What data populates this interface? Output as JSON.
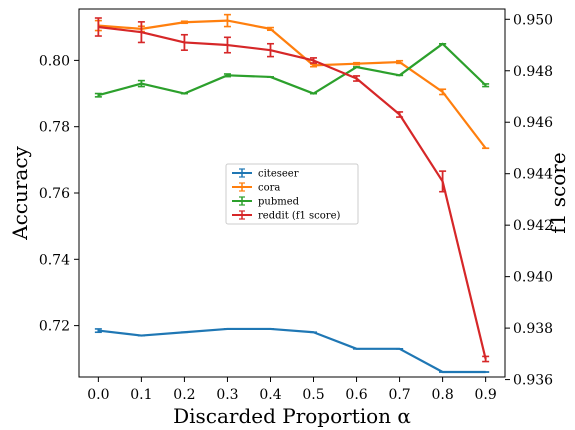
{
  "chart_data": {
    "type": "line",
    "xlabel": "Discarded Proportion α",
    "ylabel_left": "Accuracy",
    "ylabel_right": "f1 score",
    "x": [
      0.0,
      0.1,
      0.2,
      0.3,
      0.4,
      0.5,
      0.6,
      0.7,
      0.8,
      0.9
    ],
    "x_ticks": [
      "0.0",
      "0.1",
      "0.2",
      "0.3",
      "0.4",
      "0.5",
      "0.6",
      "0.7",
      "0.8",
      "0.9"
    ],
    "xlim": [
      -0.045,
      0.945
    ],
    "ylim_left": [
      0.7045,
      0.8155
    ],
    "yticks_left": [
      "0.72",
      "0.74",
      "0.76",
      "0.78",
      "0.80"
    ],
    "ylim_right": [
      0.9361,
      0.9504
    ],
    "yticks_right": [
      "0.936",
      "0.938",
      "0.940",
      "0.942",
      "0.944",
      "0.946",
      "0.948",
      "0.950"
    ],
    "legend_position": "center",
    "series": [
      {
        "name": "citeseer",
        "axis": "left",
        "color": "#1f77b4",
        "values": [
          0.7185,
          0.717,
          0.718,
          0.719,
          0.719,
          0.718,
          0.713,
          0.713,
          0.706,
          0.706
        ],
        "errors": [
          0.0005,
          0,
          0,
          0,
          0,
          0,
          0,
          0,
          0,
          0
        ]
      },
      {
        "name": "cora",
        "axis": "left",
        "color": "#ff7f0e",
        "values": [
          0.8105,
          0.8095,
          0.8115,
          0.812,
          0.8095,
          0.7985,
          0.799,
          0.7995,
          0.7905,
          0.7735
        ],
        "errors": [
          0.0015,
          0.0008,
          0.0003,
          0.0018,
          0.0004,
          0.0004,
          0.0003,
          0.0004,
          0.0008,
          0
        ]
      },
      {
        "name": "pubmed",
        "axis": "left",
        "color": "#2ca02c",
        "values": [
          0.7895,
          0.793,
          0.79,
          0.7955,
          0.795,
          0.79,
          0.798,
          0.7955,
          0.805,
          0.7925
        ],
        "errors": [
          0.0005,
          0.0009,
          0,
          0.0004,
          0,
          0,
          0,
          0,
          0,
          0.0004
        ]
      },
      {
        "name": "reddit (f1 score)",
        "axis": "right",
        "color": "#d62728",
        "values": [
          0.9497,
          0.9495,
          0.9491,
          0.949,
          0.9488,
          0.9484,
          0.9477,
          0.9463,
          0.9437,
          0.9368
        ],
        "errors": [
          0.00035,
          0.0004,
          0.0003,
          0.0003,
          0.00025,
          0.0001,
          0.0001,
          0.0001,
          0.0004,
          0.0001
        ]
      }
    ]
  }
}
